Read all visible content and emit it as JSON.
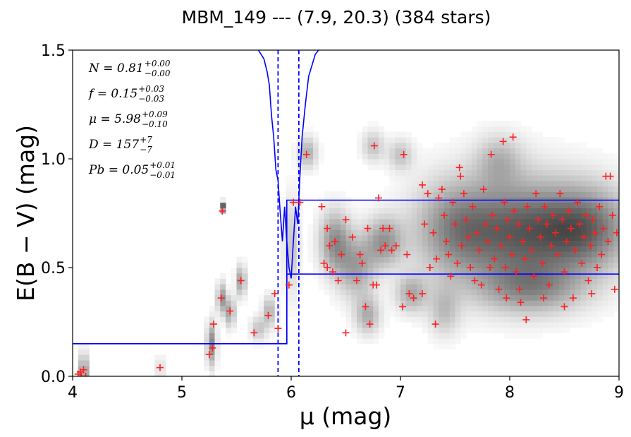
{
  "chart_data": {
    "type": "scatter",
    "title": "MBM_149 --- (7.9, 20.3) (384 stars)",
    "xlabel": "μ (mag)",
    "ylabel": "E(B − V) (mag)",
    "xlim": [
      4,
      9
    ],
    "ylim": [
      0.0,
      1.5
    ],
    "xticks": [
      "4",
      "5",
      "6",
      "7",
      "8",
      "9"
    ],
    "yticks": [
      "0.0",
      "0.5",
      "1.0",
      "1.5"
    ],
    "grid": false,
    "annotations": [
      {
        "name": "N",
        "text": "N = 0.81",
        "sup": "+0.00",
        "sub": "−0.00"
      },
      {
        "name": "f",
        "text": "f = 0.15",
        "sup": "+0.03",
        "sub": "−0.03"
      },
      {
        "name": "mu",
        "text": "μ = 5.98",
        "sup": "+0.09",
        "sub": "−0.10"
      },
      {
        "name": "D",
        "text": "D = 157",
        "sup": "+7",
        "sub": "−7"
      },
      {
        "name": "Pb",
        "text": "Pb = 0.05",
        "sup": "+0.01",
        "sub": "−0.01"
      }
    ],
    "series": [
      {
        "kind": "step",
        "color": "#0000ff",
        "x": [
          4.0,
          5.96,
          5.96,
          9.0
        ],
        "y": [
          0.15,
          0.15,
          0.81,
          0.81
        ]
      },
      {
        "kind": "step",
        "color": "#0000ff",
        "x": [
          4.0,
          5.96,
          5.96,
          9.0
        ],
        "y": [
          0.15,
          0.15,
          0.47,
          0.47
        ]
      },
      {
        "kind": "line",
        "color": "#0000ff",
        "x": [
          5.7,
          5.75,
          5.78,
          5.8,
          5.82,
          5.84,
          5.86,
          5.88,
          5.9,
          5.92,
          5.94,
          5.96,
          5.98,
          6.0,
          6.02,
          6.04,
          6.06,
          6.08,
          6.1,
          6.13,
          6.16,
          6.19,
          6.22,
          6.25
        ],
        "y": [
          1.5,
          1.46,
          1.4,
          1.34,
          1.2,
          1.1,
          0.95,
          0.9,
          0.75,
          0.62,
          0.78,
          0.62,
          0.5,
          0.45,
          0.62,
          0.78,
          0.7,
          0.92,
          1.1,
          1.25,
          1.38,
          1.43,
          1.48,
          1.5
        ]
      },
      {
        "kind": "vline",
        "style": "dashed",
        "color": "#0000ff",
        "x": [
          5.88,
          6.07
        ]
      },
      {
        "kind": "scatter",
        "marker": "+",
        "color": "#ff2020",
        "points": [
          [
            4.05,
            0.01
          ],
          [
            4.07,
            0.02
          ],
          [
            4.1,
            0.03
          ],
          [
            4.12,
            0.0
          ],
          [
            4.08,
            0.0
          ],
          [
            4.8,
            0.04
          ],
          [
            5.25,
            0.1
          ],
          [
            5.28,
            0.13
          ],
          [
            5.29,
            0.24
          ],
          [
            5.36,
            0.36
          ],
          [
            5.37,
            0.76
          ],
          [
            5.44,
            0.3
          ],
          [
            5.54,
            0.44
          ],
          [
            5.66,
            0.2
          ],
          [
            5.79,
            0.28
          ],
          [
            5.85,
            0.38
          ],
          [
            5.88,
            0.22
          ],
          [
            5.98,
            0.42
          ],
          [
            6.02,
            0.8
          ],
          [
            6.08,
            0.8
          ],
          [
            6.14,
            1.02
          ],
          [
            6.28,
            0.78
          ],
          [
            6.3,
            0.52
          ],
          [
            6.33,
            0.68
          ],
          [
            6.33,
            0.5
          ],
          [
            6.35,
            0.6
          ],
          [
            6.38,
            0.48
          ],
          [
            6.4,
            0.62
          ],
          [
            6.43,
            0.44
          ],
          [
            6.46,
            0.56
          ],
          [
            6.5,
            0.2
          ],
          [
            6.5,
            0.72
          ],
          [
            6.56,
            0.64
          ],
          [
            6.6,
            0.44
          ],
          [
            6.63,
            0.56
          ],
          [
            6.65,
            0.52
          ],
          [
            6.68,
            0.32
          ],
          [
            6.7,
            0.68
          ],
          [
            6.72,
            0.24
          ],
          [
            6.75,
            0.42
          ],
          [
            6.76,
            1.06
          ],
          [
            6.78,
            0.42
          ],
          [
            6.8,
            0.82
          ],
          [
            6.82,
            0.58
          ],
          [
            6.84,
            0.68
          ],
          [
            6.86,
            0.6
          ],
          [
            6.9,
            0.68
          ],
          [
            6.92,
            0.58
          ],
          [
            6.96,
            0.6
          ],
          [
            7.02,
            0.32
          ],
          [
            7.03,
            1.02
          ],
          [
            7.06,
            0.56
          ],
          [
            7.08,
            0.38
          ],
          [
            7.12,
            0.36
          ],
          [
            7.2,
            0.88
          ],
          [
            7.2,
            0.38
          ],
          [
            7.22,
            0.7
          ],
          [
            7.25,
            0.84
          ],
          [
            7.27,
            0.5
          ],
          [
            7.3,
            0.66
          ],
          [
            7.32,
            0.24
          ],
          [
            7.33,
            0.54
          ],
          [
            7.35,
            0.82
          ],
          [
            7.38,
            0.86
          ],
          [
            7.4,
            0.74
          ],
          [
            7.42,
            0.62
          ],
          [
            7.44,
            0.56
          ],
          [
            7.46,
            0.46
          ],
          [
            7.48,
            0.8
          ],
          [
            7.5,
            0.7
          ],
          [
            7.52,
            0.52
          ],
          [
            7.54,
            0.96
          ],
          [
            7.55,
            0.92
          ],
          [
            7.56,
            0.6
          ],
          [
            7.58,
            0.84
          ],
          [
            7.6,
            0.72
          ],
          [
            7.62,
            0.64
          ],
          [
            7.64,
            0.5
          ],
          [
            7.66,
            0.78
          ],
          [
            7.68,
            0.44
          ],
          [
            7.7,
            0.66
          ],
          [
            7.72,
            0.58
          ],
          [
            7.74,
            0.42
          ],
          [
            7.76,
            0.86
          ],
          [
            7.78,
            0.7
          ],
          [
            7.8,
            0.62
          ],
          [
            7.82,
            0.5
          ],
          [
            7.83,
            1.02
          ],
          [
            7.84,
            0.74
          ],
          [
            7.86,
            0.54
          ],
          [
            7.88,
            0.68
          ],
          [
            7.9,
            0.4
          ],
          [
            7.92,
            0.6
          ],
          [
            7.94,
            1.08
          ],
          [
            7.95,
            0.8
          ],
          [
            7.96,
            0.5
          ],
          [
            7.98,
            0.72
          ],
          [
            8.0,
            0.64
          ],
          [
            8.02,
            0.56
          ],
          [
            8.03,
            1.1
          ],
          [
            8.04,
            0.76
          ],
          [
            8.06,
            0.48
          ],
          [
            8.08,
            0.7
          ],
          [
            8.1,
            0.34
          ],
          [
            8.12,
            0.62
          ],
          [
            8.14,
            0.54
          ],
          [
            8.16,
            0.78
          ],
          [
            8.18,
            0.68
          ],
          [
            8.2,
            0.58
          ],
          [
            8.22,
            0.46
          ],
          [
            8.24,
            0.84
          ],
          [
            8.26,
            0.72
          ],
          [
            8.28,
            0.64
          ],
          [
            8.3,
            0.52
          ],
          [
            8.32,
            0.78
          ],
          [
            8.34,
            0.7
          ],
          [
            8.36,
            0.42
          ],
          [
            8.38,
            0.6
          ],
          [
            8.4,
            0.74
          ],
          [
            8.42,
            0.66
          ],
          [
            8.44,
            0.56
          ],
          [
            8.46,
            0.84
          ],
          [
            8.48,
            0.72
          ],
          [
            8.5,
            0.48
          ],
          [
            8.52,
            0.62
          ],
          [
            8.54,
            0.76
          ],
          [
            8.56,
            0.68
          ],
          [
            8.58,
            0.36
          ],
          [
            8.6,
            0.58
          ],
          [
            8.62,
            0.8
          ],
          [
            8.64,
            0.7
          ],
          [
            8.66,
            0.52
          ],
          [
            8.68,
            0.64
          ],
          [
            8.7,
            0.74
          ],
          [
            8.72,
            0.44
          ],
          [
            8.74,
            0.6
          ],
          [
            8.76,
            0.72
          ],
          [
            8.78,
            0.66
          ],
          [
            8.8,
            0.5
          ],
          [
            8.82,
            0.78
          ],
          [
            8.84,
            0.56
          ],
          [
            8.86,
            0.68
          ],
          [
            8.88,
            0.92
          ],
          [
            8.9,
            0.62
          ],
          [
            8.92,
            0.92
          ],
          [
            8.94,
            0.74
          ],
          [
            8.96,
            0.4
          ],
          [
            8.98,
            0.66
          ],
          [
            8.15,
            0.26
          ],
          [
            7.97,
            0.36
          ],
          [
            8.09,
            0.4
          ],
          [
            8.31,
            0.36
          ],
          [
            8.5,
            0.32
          ],
          [
            8.75,
            0.38
          ]
        ]
      }
    ],
    "density_blobs": [
      {
        "x": 4.1,
        "y": 0.02,
        "sx": 0.02,
        "sy": 0.06,
        "w": 0.9
      },
      {
        "x": 4.8,
        "y": 0.04,
        "sx": 0.015,
        "sy": 0.04,
        "w": 0.5
      },
      {
        "x": 5.27,
        "y": 0.15,
        "sx": 0.03,
        "sy": 0.07,
        "w": 0.6
      },
      {
        "x": 5.36,
        "y": 0.36,
        "sx": 0.025,
        "sy": 0.05,
        "w": 0.6
      },
      {
        "x": 5.37,
        "y": 0.78,
        "sx": 0.01,
        "sy": 0.015,
        "w": 1.0
      },
      {
        "x": 5.44,
        "y": 0.3,
        "sx": 0.03,
        "sy": 0.05,
        "w": 0.5
      },
      {
        "x": 5.54,
        "y": 0.44,
        "sx": 0.03,
        "sy": 0.05,
        "w": 0.5
      },
      {
        "x": 5.7,
        "y": 0.22,
        "sx": 0.05,
        "sy": 0.04,
        "w": 0.3
      },
      {
        "x": 5.8,
        "y": 0.3,
        "sx": 0.04,
        "sy": 0.05,
        "w": 0.4
      },
      {
        "x": 6.0,
        "y": 0.6,
        "sx": 0.05,
        "sy": 0.15,
        "w": 0.3
      },
      {
        "x": 6.15,
        "y": 1.03,
        "sx": 0.06,
        "sy": 0.05,
        "w": 0.4
      },
      {
        "x": 6.4,
        "y": 0.62,
        "sx": 0.1,
        "sy": 0.1,
        "w": 0.55
      },
      {
        "x": 6.6,
        "y": 0.5,
        "sx": 0.12,
        "sy": 0.1,
        "w": 0.45
      },
      {
        "x": 6.85,
        "y": 0.62,
        "sx": 0.12,
        "sy": 0.08,
        "w": 0.5
      },
      {
        "x": 6.7,
        "y": 0.28,
        "sx": 0.08,
        "sy": 0.06,
        "w": 0.4
      },
      {
        "x": 7.1,
        "y": 0.38,
        "sx": 0.1,
        "sy": 0.06,
        "w": 0.4
      },
      {
        "x": 7.0,
        "y": 1.02,
        "sx": 0.08,
        "sy": 0.05,
        "w": 0.3
      },
      {
        "x": 6.75,
        "y": 1.06,
        "sx": 0.07,
        "sy": 0.05,
        "w": 0.3
      },
      {
        "x": 7.5,
        "y": 0.68,
        "sx": 0.28,
        "sy": 0.16,
        "w": 0.55
      },
      {
        "x": 8.1,
        "y": 0.66,
        "sx": 0.35,
        "sy": 0.18,
        "w": 0.7
      },
      {
        "x": 8.7,
        "y": 0.68,
        "sx": 0.3,
        "sy": 0.14,
        "w": 0.7
      },
      {
        "x": 8.2,
        "y": 0.4,
        "sx": 0.35,
        "sy": 0.08,
        "w": 0.4
      },
      {
        "x": 7.9,
        "y": 1.0,
        "sx": 0.15,
        "sy": 0.08,
        "w": 0.3
      },
      {
        "x": 7.4,
        "y": 0.3,
        "sx": 0.1,
        "sy": 0.08,
        "w": 0.3
      }
    ]
  }
}
